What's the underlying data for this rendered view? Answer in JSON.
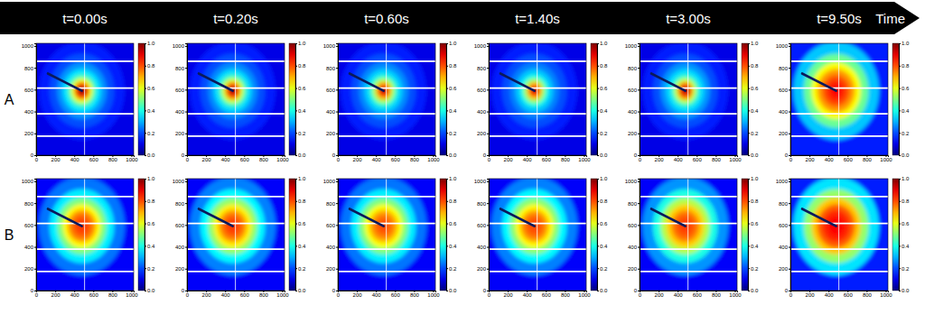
{
  "chart_data": {
    "type": "heatmap",
    "time_labels": [
      "t=0.00s",
      "t=0.20s",
      "t=0.60s",
      "t=1.40s",
      "t=3.00s",
      "t=9.50s"
    ],
    "time_axis_label": "Time",
    "xlim": [
      0,
      1024
    ],
    "ylim": [
      0,
      1024
    ],
    "xticks": [
      0,
      200,
      400,
      600,
      800,
      1000
    ],
    "yticks": [
      0,
      200,
      400,
      600,
      800,
      1000
    ],
    "center": [
      480,
      590
    ],
    "radii": [
      25,
      50,
      80,
      115,
      150,
      200,
      260,
      340,
      450,
      1500
    ],
    "color_range": [
      0,
      1
    ],
    "color_ticks": [
      {
        "value": 0,
        "label": "0.0"
      },
      0.2,
      0.4,
      0.6,
      0.8,
      {
        "value": 1,
        "label": "1.0"
      }
    ],
    "rows": [
      {
        "label": "A",
        "panels": [
          {
            "values": [
              1.0,
              0.92,
              0.78,
              0.6,
              0.45,
              0.35,
              0.27,
              0.2,
              0.15,
              0.1
            ]
          },
          {
            "values": [
              1.0,
              0.9,
              0.76,
              0.58,
              0.44,
              0.34,
              0.26,
              0.2,
              0.15,
              0.1
            ]
          },
          {
            "values": [
              0.97,
              0.88,
              0.72,
              0.55,
              0.42,
              0.33,
              0.26,
              0.2,
              0.15,
              0.1
            ]
          },
          {
            "values": [
              0.95,
              0.86,
              0.7,
              0.53,
              0.4,
              0.32,
              0.25,
              0.2,
              0.15,
              0.1
            ]
          },
          {
            "values": [
              0.97,
              0.9,
              0.75,
              0.57,
              0.43,
              0.34,
              0.27,
              0.2,
              0.15,
              0.1
            ]
          },
          {
            "values": [
              0.88,
              0.87,
              0.85,
              0.82,
              0.78,
              0.72,
              0.62,
              0.48,
              0.32,
              0.15
            ]
          }
        ]
      },
      {
        "label": "B",
        "panels": [
          {
            "values": [
              0.82,
              0.82,
              0.8,
              0.77,
              0.72,
              0.63,
              0.5,
              0.36,
              0.24,
              0.12
            ]
          },
          {
            "values": [
              0.82,
              0.82,
              0.8,
              0.77,
              0.72,
              0.64,
              0.52,
              0.37,
              0.25,
              0.12
            ]
          },
          {
            "values": [
              0.8,
              0.8,
              0.78,
              0.75,
              0.7,
              0.62,
              0.5,
              0.36,
              0.24,
              0.12
            ]
          },
          {
            "values": [
              0.8,
              0.8,
              0.79,
              0.76,
              0.71,
              0.63,
              0.51,
              0.37,
              0.25,
              0.12
            ]
          },
          {
            "values": [
              0.82,
              0.82,
              0.8,
              0.78,
              0.74,
              0.67,
              0.55,
              0.4,
              0.27,
              0.12
            ]
          },
          {
            "values": [
              0.88,
              0.88,
              0.87,
              0.85,
              0.83,
              0.78,
              0.68,
              0.52,
              0.35,
              0.15
            ]
          }
        ]
      }
    ]
  }
}
